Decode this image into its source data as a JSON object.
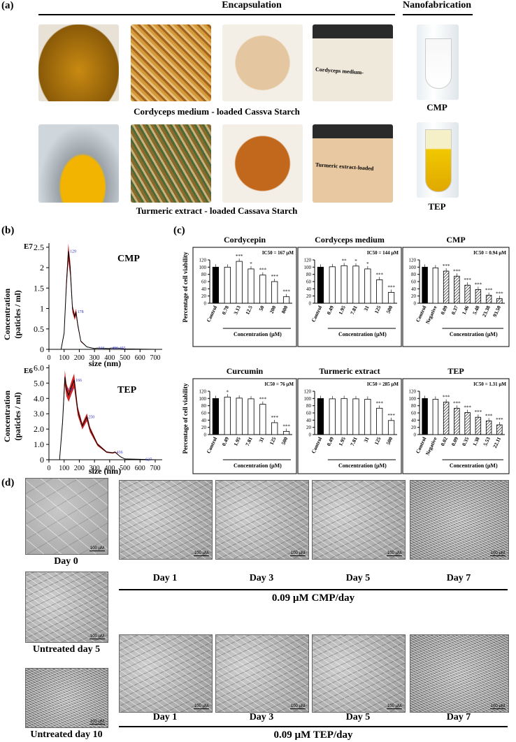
{
  "panel_a": {
    "label": "(a)",
    "encapsulation_title": "Encapsulation",
    "nanofabrication_title": "Nanofabrication",
    "row1_caption": "Cordyceps medium - loaded Cassva Starch",
    "row2_caption": "Turmeric extract - loaded Cassava Starch",
    "jar1_label": "Cordyceps medium-",
    "jar2_label": "Turmeric extract-loaded",
    "tube1_caption": "CMP",
    "tube2_caption": "TEP"
  },
  "panel_b": {
    "label": "(b)",
    "charts": [
      {
        "tag": "E7",
        "name": "CMP",
        "ylabel": "Concentration\n(paticles / ml)",
        "xlabel": "size (nm)",
        "yticks": [
          "0",
          "0.5",
          "1",
          "1.5",
          "2",
          "2.5"
        ],
        "xticks": [
          "0",
          "100",
          "200",
          "300",
          "400",
          "500",
          "600",
          "700"
        ],
        "peaks": [
          "129",
          "178",
          "316",
          "406",
          "455"
        ]
      },
      {
        "tag": "E6",
        "name": "TEP",
        "ylabel": "Concentration\n(paticles / ml)",
        "xlabel": "size (nm)",
        "yticks": [
          "0",
          "1.0",
          "2.0",
          "3.0",
          "4.0",
          "5.0",
          "6.0"
        ],
        "xticks": [
          "0",
          "100",
          "200",
          "300",
          "400",
          "500",
          "600",
          "700"
        ],
        "peaks": [
          "111",
          "166",
          "250",
          "436",
          "627"
        ]
      }
    ]
  },
  "panel_c": {
    "label": "(c)",
    "ylabel": "Percentage of cell viability",
    "xlabel": "Concentration (µM)",
    "yticks": [
      "0",
      "20",
      "40",
      "60",
      "80",
      "100",
      "120"
    ]
  },
  "chart_data": [
    {
      "type": "bar",
      "title": "Cordycepin",
      "ic50": "IC50 = 167 µM",
      "categories": [
        "Control",
        "0.78",
        "3.13",
        "12.5",
        "50",
        "200",
        "800"
      ],
      "values": [
        100,
        100,
        116,
        95,
        78,
        60,
        18
      ],
      "sig": [
        "",
        "",
        "***",
        "*",
        "***",
        "***",
        "***"
      ]
    },
    {
      "type": "bar",
      "title": "Cordyceps medium",
      "ic50": "IC50 = 144 µM",
      "categories": [
        "Control",
        "0.49",
        "1.95",
        "7.81",
        "31",
        "125",
        "500"
      ],
      "values": [
        100,
        101,
        104,
        103,
        95,
        65,
        30
      ],
      "sig": [
        "",
        "",
        "**",
        "*",
        "*",
        "***",
        "***"
      ]
    },
    {
      "type": "bar",
      "title": "CMP",
      "ic50": "IC50 = 0.94 µM",
      "categories": [
        "Control",
        "Negative",
        "0.09",
        "0.37",
        "1.46",
        "5.48",
        "23.38",
        "93.50"
      ],
      "values": [
        100,
        98,
        89,
        75,
        50,
        38,
        22,
        13
      ],
      "sig": [
        "",
        "",
        "***",
        "***",
        "***",
        "***",
        "***",
        "***"
      ]
    },
    {
      "type": "bar",
      "title": "Curcumin",
      "ic50": "IC50 = 76 µM",
      "categories": [
        "Control",
        "0.49",
        "1.95",
        "7.81",
        "31",
        "125",
        "500"
      ],
      "values": [
        100,
        104,
        101,
        99,
        84,
        33,
        9
      ],
      "sig": [
        "",
        "*",
        "",
        "",
        "***",
        "***",
        "***"
      ]
    },
    {
      "type": "bar",
      "title": "Turmeric extract",
      "ic50": "IC50 = 285 µM",
      "categories": [
        "Control",
        "0.49",
        "1.95",
        "7.81",
        "31",
        "125",
        "500"
      ],
      "values": [
        100,
        99,
        100,
        99,
        98,
        73,
        39
      ],
      "sig": [
        "",
        "",
        "",
        "",
        "",
        "***",
        "***"
      ]
    },
    {
      "type": "bar",
      "title": "TEP",
      "ic50": "IC50 = 1.31 µM",
      "categories": [
        "Control",
        "Negative",
        "0.02",
        "0.09",
        "0.35",
        "1.38",
        "5.53",
        "22.11"
      ],
      "values": [
        100,
        98,
        90,
        73,
        61,
        48,
        38,
        27
      ],
      "sig": [
        "",
        "",
        "***",
        "***",
        "***",
        "***",
        "***",
        "***"
      ]
    }
  ],
  "panel_d": {
    "label": "(d)",
    "day0": "Day 0",
    "untreated5": "Untreated day 5",
    "untreated10": "Untreated day 10",
    "days": [
      "Day 1",
      "Day 3",
      "Day 5",
      "Day 7"
    ],
    "cmp_caption": "0.09 µM CMP/day",
    "tep_caption": "0.09 µM TEP/day",
    "scalebar": "100 µM"
  }
}
